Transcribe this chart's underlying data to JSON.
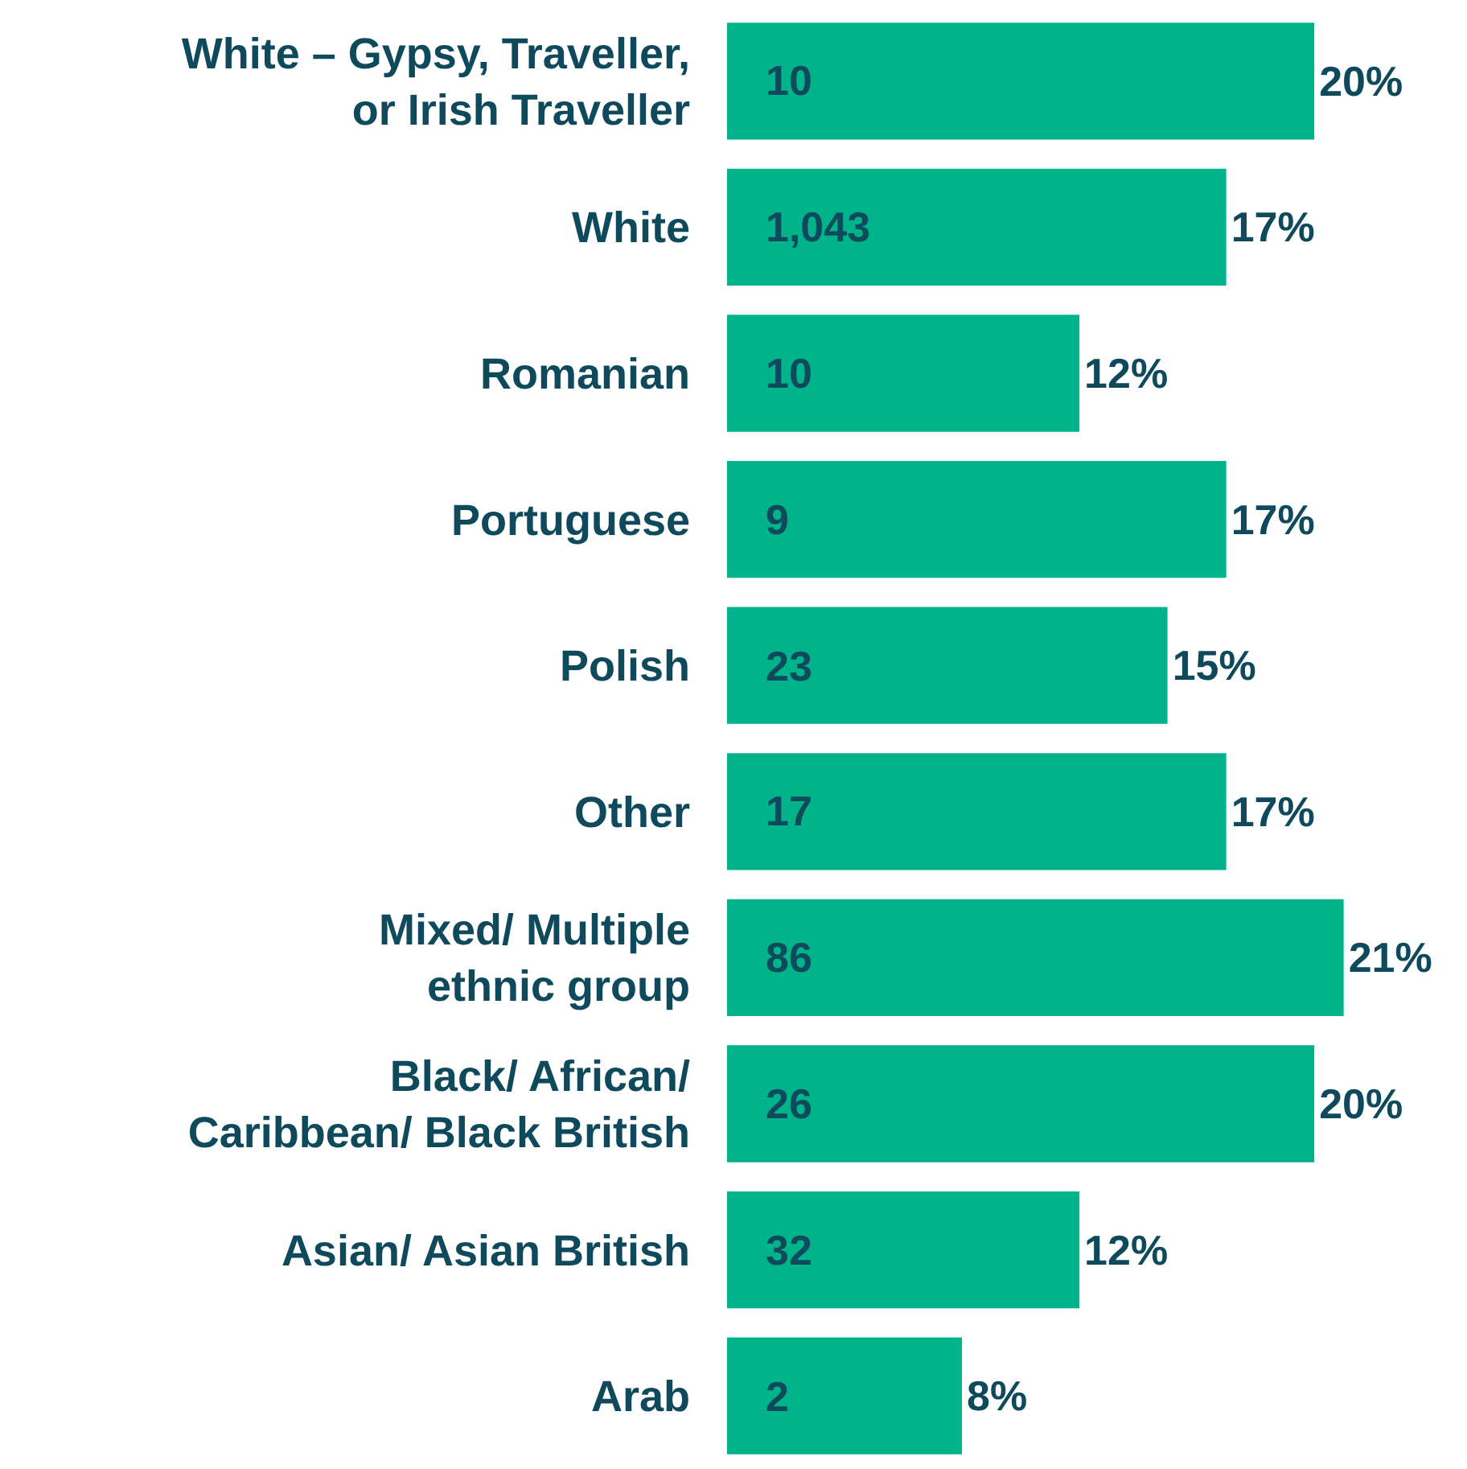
{
  "chart_data": {
    "type": "bar",
    "orientation": "horizontal",
    "color": "#00b38a",
    "categories": [
      "White – Gypsy, Traveller, or Irish Traveller",
      "White",
      "Romanian",
      "Portuguese",
      "Polish",
      "Other",
      "Mixed/ Multiple ethnic group",
      "Black/ African/ Caribbean/ Black British",
      "Asian/ Asian British",
      "Arab"
    ],
    "values": [
      20,
      17,
      12,
      17,
      15,
      17,
      21,
      20,
      12,
      8
    ],
    "value_labels": [
      "20%",
      "17%",
      "12%",
      "17%",
      "15%",
      "17%",
      "21%",
      "20%",
      "12%",
      "8%"
    ],
    "annotations": [
      {
        "text": "10",
        "y": "White – Gypsy, Traveller, or Irish Traveller"
      },
      {
        "text": "1,043",
        "y": "White"
      },
      {
        "text": "10",
        "y": "Romanian"
      },
      {
        "text": "9",
        "y": "Portuguese"
      },
      {
        "text": "23",
        "y": "Polish"
      },
      {
        "text": "17",
        "y": "Other"
      },
      {
        "text": "86",
        "y": "Mixed/ Multiple ethnic group"
      },
      {
        "text": "26",
        "y": "Black/ African/ Caribbean/ Black British"
      },
      {
        "text": "32",
        "y": "Asian/ Asian British"
      },
      {
        "text": "2",
        "y": "Arab"
      }
    ],
    "grid": false,
    "legend": false
  }
}
